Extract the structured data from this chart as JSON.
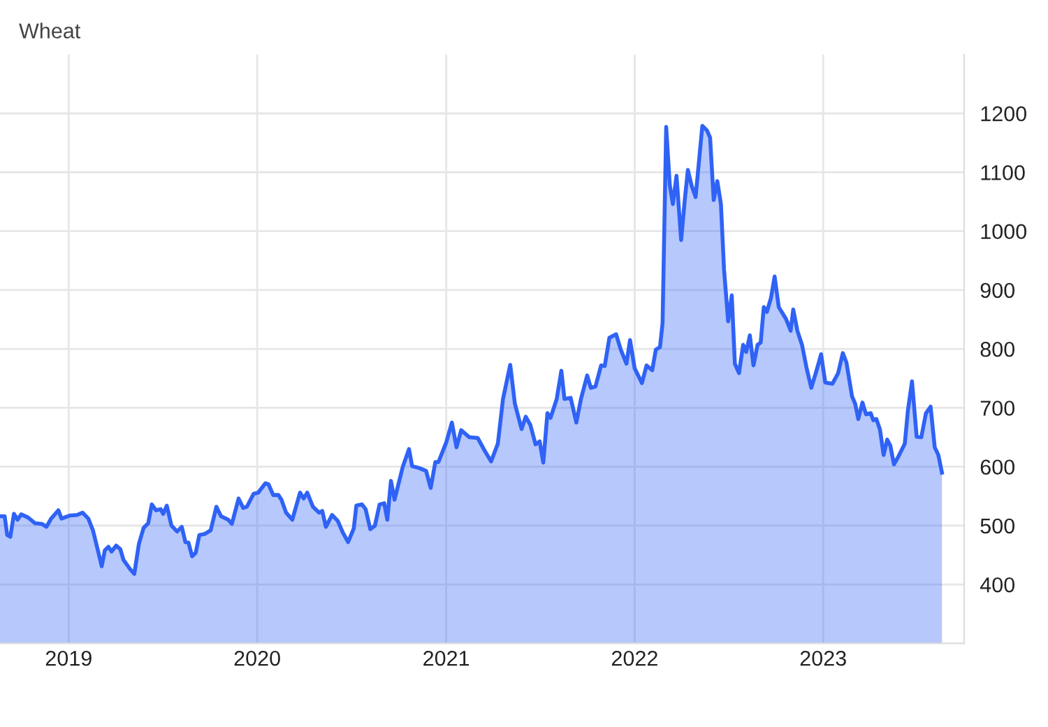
{
  "chart_data": {
    "type": "area",
    "title": "Wheat",
    "x": [
      "2018-08-21",
      "2018-08-30",
      "2018-09-04",
      "2018-09-10",
      "2018-09-17",
      "2018-09-24",
      "2018-10-01",
      "2018-10-14",
      "2018-10-28",
      "2018-11-10",
      "2018-11-19",
      "2018-11-28",
      "2018-12-12",
      "2018-12-18",
      "2019-01-03",
      "2019-01-17",
      "2019-01-28",
      "2019-02-08",
      "2019-02-17",
      "2019-02-26",
      "2019-03-06",
      "2019-03-12",
      "2019-03-19",
      "2019-03-25",
      "2019-04-03",
      "2019-04-11",
      "2019-04-17",
      "2019-04-30",
      "2019-05-08",
      "2019-05-17",
      "2019-05-26",
      "2019-06-04",
      "2019-06-11",
      "2019-06-19",
      "2019-06-28",
      "2019-07-03",
      "2019-07-10",
      "2019-07-19",
      "2019-07-30",
      "2019-08-08",
      "2019-08-15",
      "2019-08-21",
      "2019-08-28",
      "2019-09-04",
      "2019-09-11",
      "2019-09-22",
      "2019-10-03",
      "2019-10-14",
      "2019-10-23",
      "2019-11-06",
      "2019-11-13",
      "2019-11-26",
      "2019-12-05",
      "2019-12-12",
      "2019-12-25",
      "2020-01-03",
      "2020-01-17",
      "2020-01-23",
      "2020-02-01",
      "2020-02-11",
      "2020-02-17",
      "2020-02-26",
      "2020-03-09",
      "2020-03-24",
      "2020-03-31",
      "2020-04-07",
      "2020-04-18",
      "2020-04-30",
      "2020-05-06",
      "2020-05-13",
      "2020-05-25",
      "2020-06-05",
      "2020-06-15",
      "2020-06-25",
      "2020-07-06",
      "2020-07-11",
      "2020-07-22",
      "2020-07-29",
      "2020-08-07",
      "2020-08-16",
      "2020-08-25",
      "2020-09-03",
      "2020-09-09",
      "2020-09-16",
      "2020-09-23",
      "2020-10-09",
      "2020-10-21",
      "2020-10-27",
      "2020-11-09",
      "2020-11-23",
      "2020-12-02",
      "2020-12-11",
      "2020-12-17",
      "2021-01-01",
      "2021-01-12",
      "2021-01-21",
      "2021-01-30",
      "2021-02-15",
      "2021-03-03",
      "2021-03-16",
      "2021-03-29",
      "2021-04-11",
      "2021-04-21",
      "2021-05-05",
      "2021-05-14",
      "2021-05-27",
      "2021-06-04",
      "2021-06-13",
      "2021-06-23",
      "2021-07-01",
      "2021-07-08",
      "2021-07-16",
      "2021-07-22",
      "2021-08-03",
      "2021-08-12",
      "2021-08-18",
      "2021-08-30",
      "2021-09-10",
      "2021-09-19",
      "2021-10-01",
      "2021-10-08",
      "2021-10-17",
      "2021-10-28",
      "2021-11-04",
      "2021-11-13",
      "2021-11-26",
      "2021-12-05",
      "2021-12-16",
      "2021-12-23",
      "2022-01-01",
      "2022-01-15",
      "2022-01-24",
      "2022-02-04",
      "2022-02-11",
      "2022-02-19",
      "2022-02-24",
      "2022-03-03",
      "2022-03-10",
      "2022-03-16",
      "2022-03-23",
      "2022-04-01",
      "2022-04-08",
      "2022-04-14",
      "2022-04-21",
      "2022-04-29",
      "2022-05-12",
      "2022-05-21",
      "2022-05-27",
      "2022-06-03",
      "2022-06-10",
      "2022-06-17",
      "2022-06-23",
      "2022-07-01",
      "2022-07-08",
      "2022-07-14",
      "2022-07-22",
      "2022-07-30",
      "2022-08-05",
      "2022-08-12",
      "2022-08-19",
      "2022-08-27",
      "2022-09-02",
      "2022-09-08",
      "2022-09-14",
      "2022-09-22",
      "2022-09-29",
      "2022-10-07",
      "2022-10-21",
      "2022-10-30",
      "2022-11-04",
      "2022-11-12",
      "2022-11-21",
      "2022-11-30",
      "2022-12-09",
      "2022-12-19",
      "2022-12-28",
      "2023-01-05",
      "2023-01-19",
      "2023-01-30",
      "2023-02-08",
      "2023-02-15",
      "2023-02-26",
      "2023-03-04",
      "2023-03-10",
      "2023-03-18",
      "2023-03-25",
      "2023-04-03",
      "2023-04-08",
      "2023-04-14",
      "2023-04-21",
      "2023-04-28",
      "2023-05-05",
      "2023-05-11",
      "2023-05-18",
      "2023-05-27",
      "2023-06-08",
      "2023-06-14",
      "2023-06-22",
      "2023-07-01",
      "2023-07-10",
      "2023-07-19",
      "2023-07-28",
      "2023-08-05",
      "2023-08-12",
      "2023-08-19"
    ],
    "series": [
      {
        "color": "#2f62f5",
        "values": [
          516,
          516,
          484,
          481,
          520,
          510,
          519,
          514,
          504,
          503,
          498,
          512,
          526,
          512,
          517,
          518,
          522,
          512,
          492,
          460,
          431,
          458,
          464,
          456,
          466,
          460,
          442,
          426,
          418,
          469,
          496,
          504,
          536,
          526,
          528,
          520,
          534,
          500,
          490,
          498,
          472,
          471,
          448,
          454,
          484,
          486,
          492,
          532,
          516,
          510,
          503,
          546,
          530,
          532,
          554,
          556,
          572,
          570,
          552,
          552,
          544,
          522,
          510,
          556,
          546,
          556,
          532,
          522,
          525,
          498,
          518,
          508,
          488,
          472,
          495,
          534,
          536,
          528,
          494,
          500,
          536,
          538,
          510,
          576,
          544,
          600,
          630,
          601,
          598,
          593,
          564,
          608,
          608,
          641,
          675,
          633,
          662,
          650,
          649,
          628,
          609,
          639,
          715,
          773,
          707,
          664,
          685,
          671,
          638,
          643,
          607,
          691,
          683,
          715,
          763,
          715,
          717,
          675,
          715,
          755,
          734,
          736,
          772,
          771,
          819,
          825,
          799,
          775,
          815,
          767,
          742,
          772,
          764,
          799,
          803,
          844,
          1177,
          1078,
          1046,
          1094,
          985,
          1053,
          1104,
          1078,
          1058,
          1179,
          1171,
          1159,
          1053,
          1085,
          1046,
          935,
          847,
          891,
          775,
          759,
          807,
          795,
          823,
          772,
          807,
          811,
          871,
          863,
          887,
          923,
          871,
          851,
          831,
          867,
          831,
          807,
          767,
          734,
          763,
          791,
          743,
          741,
          759,
          793,
          777,
          719,
          707,
          681,
          709,
          689,
          691,
          679,
          681,
          663,
          620,
          646,
          636,
          604,
          618,
          639,
          695,
          745,
          651,
          650,
          691,
          702,
          633,
          620,
          590
        ]
      }
    ],
    "xlim": [
      "2018-08-21",
      "2023-10-01"
    ],
    "xticks": [
      {
        "value": "2019-01-01",
        "label": "2019"
      },
      {
        "value": "2020-01-01",
        "label": "2020"
      },
      {
        "value": "2021-01-01",
        "label": "2021"
      },
      {
        "value": "2022-01-01",
        "label": "2022"
      },
      {
        "value": "2023-01-01",
        "label": "2023"
      }
    ],
    "ylim": [
      300,
      1300
    ],
    "yticks": [
      400,
      500,
      600,
      700,
      800,
      900,
      1000,
      1100,
      1200
    ],
    "grid": true
  }
}
